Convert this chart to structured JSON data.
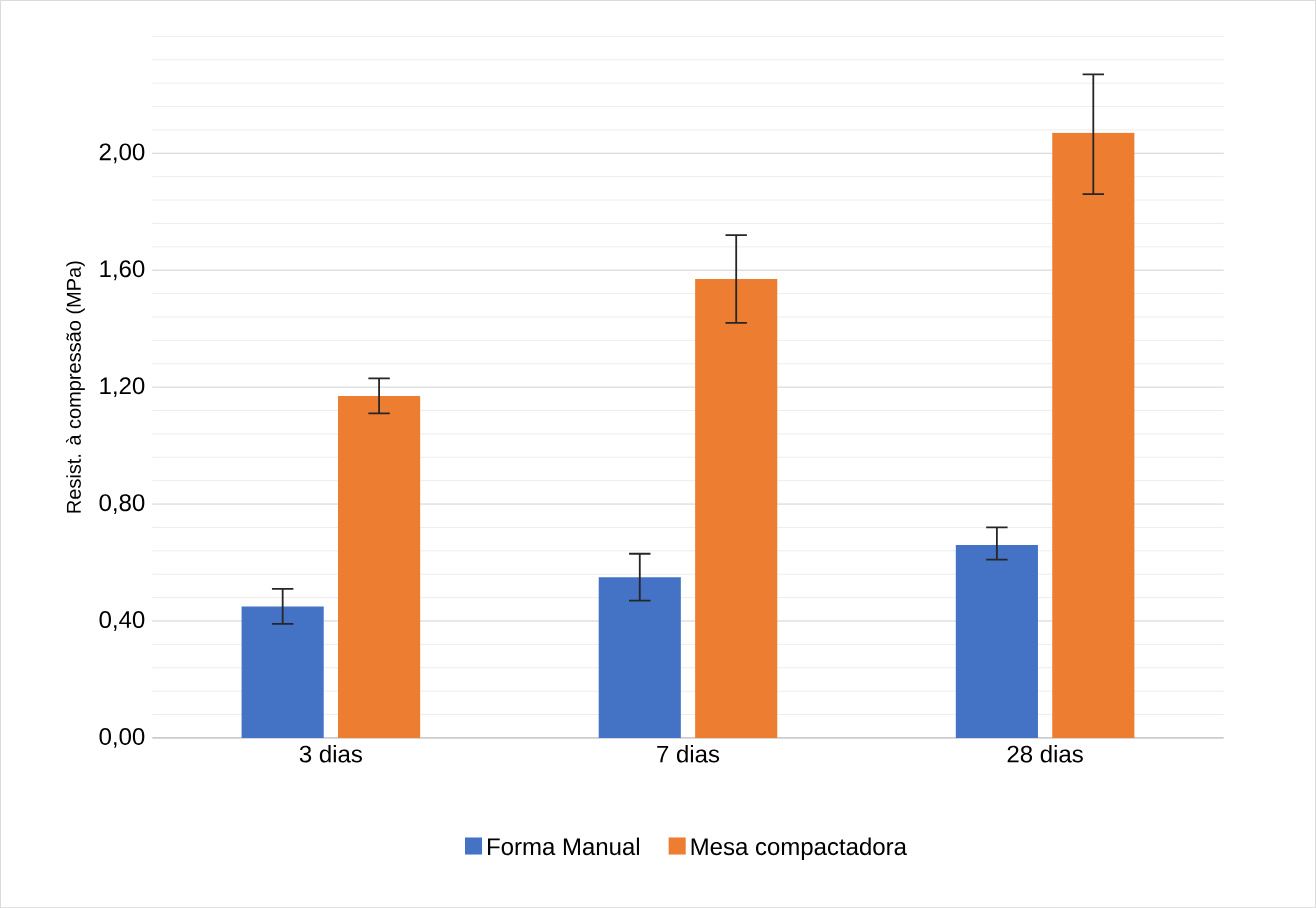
{
  "chart_data": {
    "type": "bar",
    "ylabel": "Resist.  à compressão (MPa)",
    "categories": [
      "3 dias",
      "7 dias",
      "28 dias"
    ],
    "series": [
      {
        "name": "Forma Manual",
        "color": "#4472c4",
        "values": [
          0.45,
          0.55,
          0.66
        ],
        "errors": [
          [
            0.39,
            0.51
          ],
          [
            0.47,
            0.63
          ],
          [
            0.61,
            0.72
          ]
        ]
      },
      {
        "name": "Mesa compactadora",
        "color": "#ed7d31",
        "values": [
          1.17,
          1.57,
          2.07
        ],
        "errors": [
          [
            1.11,
            1.23
          ],
          [
            1.42,
            1.72
          ],
          [
            1.86,
            2.27
          ]
        ]
      }
    ],
    "ylim": [
      0,
      2.4
    ],
    "yticks": [
      {
        "value": 0,
        "label": "0,00"
      },
      {
        "value": 0.4,
        "label": "0,40"
      },
      {
        "value": 0.8,
        "label": "0,80"
      },
      {
        "value": 1.2,
        "label": "1,20"
      },
      {
        "value": 1.6,
        "label": "1,60"
      },
      {
        "value": 2.0,
        "label": "2,00"
      }
    ],
    "grid": "y",
    "legend": "bottom"
  }
}
